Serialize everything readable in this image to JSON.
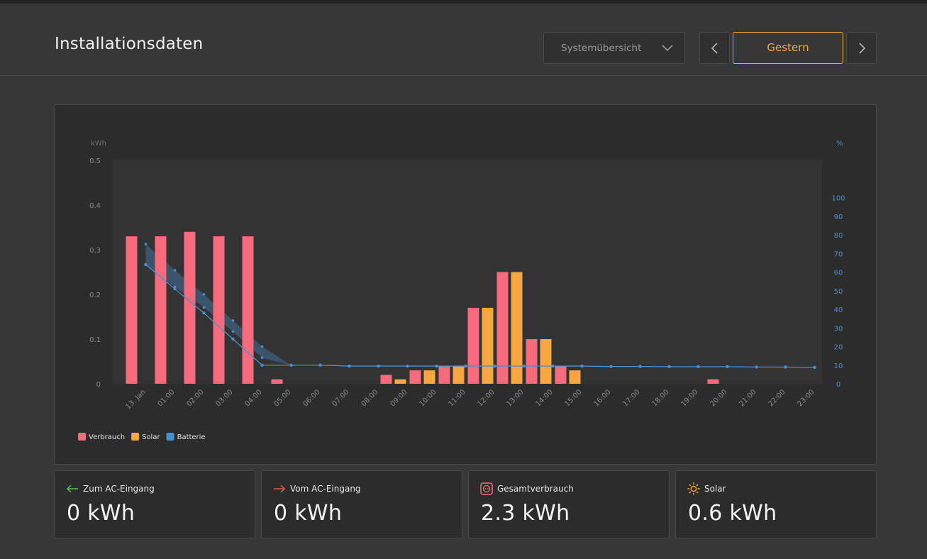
{
  "page": {
    "title": "Installationsdaten"
  },
  "controls": {
    "view_select": "Systemübersicht",
    "date_label": "Gestern"
  },
  "colors": {
    "consumption": "#f56b7e",
    "solar": "#f5a742",
    "battery": "#4a8fd4",
    "background": "#373737",
    "panel": "#2c2c2c"
  },
  "chart_data": {
    "type": "bar",
    "y_left_unit": "kWh",
    "y_right_unit": "%",
    "y_left_ticks": [
      "0.5",
      "0.4",
      "0.3",
      "0.2",
      "0.1",
      "0"
    ],
    "y_right_ticks": [
      "100",
      "90",
      "80",
      "70",
      "60",
      "50",
      "40",
      "30",
      "20",
      "10",
      "0"
    ],
    "ylim_left": [
      0,
      0.5
    ],
    "ylim_right": [
      0,
      120
    ],
    "categories": [
      "13. Jan",
      "01:00",
      "02:00",
      "03:00",
      "04:00",
      "05:00",
      "06:00",
      "07:00",
      "08:00",
      "09:00",
      "10:00",
      "11:00",
      "12:00",
      "13:00",
      "14:00",
      "15:00",
      "16:00",
      "17:00",
      "18:00",
      "19:00",
      "20:00",
      "21:00",
      "22:00",
      "23:00"
    ],
    "series": [
      {
        "name": "Verbrauch",
        "color": "#f56b7e",
        "values": [
          0.33,
          0.33,
          0.34,
          0.33,
          0.33,
          0.01,
          0,
          0,
          0,
          0.02,
          0.03,
          0.04,
          0.17,
          0.25,
          0.1,
          0.04,
          0,
          0,
          0,
          0,
          0.01,
          0,
          0,
          0
        ]
      },
      {
        "name": "Solar",
        "color": "#f5a742",
        "values": [
          0,
          0,
          0,
          0,
          0,
          0,
          0,
          0,
          0,
          0.01,
          0.03,
          0.04,
          0.17,
          0.25,
          0.1,
          0.03,
          0,
          0,
          0,
          0,
          0,
          0,
          0,
          0
        ]
      },
      {
        "name": "Batterie",
        "color": "#4a8fd4",
        "unit": "%",
        "values": [
          64,
          51,
          38,
          24,
          10,
          10,
          10,
          9.5,
          9.5,
          9.5,
          9.5,
          9.5,
          9.5,
          9.5,
          9.5,
          9.5,
          9.3,
          9.3,
          9.2,
          9.2,
          9.2,
          9,
          9,
          8.8
        ],
        "upper": [
          75,
          61,
          48,
          34,
          20
        ],
        "lower": [
          64,
          52,
          41,
          28,
          14
        ]
      }
    ],
    "legend": [
      "Verbrauch",
      "Solar",
      "Batterie"
    ],
    "legend_position": "bottom-left"
  },
  "summary": [
    {
      "label": "Zum AC-Eingang",
      "value": "0 kWh",
      "icon": "arrow-left-icon",
      "icon_color": "#5fb85f"
    },
    {
      "label": "Vom AC-Eingang",
      "value": "0 kWh",
      "icon": "arrow-right-icon",
      "icon_color": "#e05a4f"
    },
    {
      "label": "Gesamtverbrauch",
      "value": "2.3 kWh",
      "icon": "socket-icon",
      "icon_color": "#f56b7e"
    },
    {
      "label": "Solar",
      "value": "0.6 kWh",
      "icon": "sun-icon",
      "icon_color": "#f5a742"
    }
  ]
}
